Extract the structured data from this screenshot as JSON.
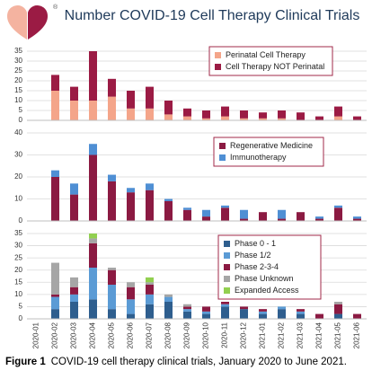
{
  "header": {
    "title": "Number COVID-19 Cell Therapy Clinical Trials",
    "mark": "®"
  },
  "caption": {
    "label": "Figure 1",
    "text": "COVID-19 cell therapy clinical trials, January 2020 to June 2021."
  },
  "chart_data": [
    {
      "type": "bar",
      "stacked": true,
      "grid": true,
      "legend": "top-right",
      "ylim": [
        0,
        35
      ],
      "yticks": [
        0,
        5,
        10,
        15,
        20,
        25,
        30,
        35
      ],
      "series": [
        {
          "name": "Perinatal Cell Therapy",
          "color": "#f4a58a",
          "values": [
            0,
            15,
            10,
            10,
            12,
            6,
            6,
            3,
            2,
            1,
            2,
            1,
            1,
            1,
            0,
            0,
            2,
            0
          ]
        },
        {
          "name": "Cell Therapy NOT Perinatal",
          "color": "#9b1b44",
          "values": [
            0,
            8,
            7,
            25,
            9,
            9,
            11,
            7,
            4,
            4,
            5,
            4,
            3,
            4,
            4,
            2,
            5,
            2
          ]
        }
      ]
    },
    {
      "type": "bar",
      "stacked": true,
      "grid": true,
      "legend": "top-right",
      "ylim": [
        0,
        40
      ],
      "yticks": [
        0,
        10,
        20,
        30,
        40
      ],
      "series": [
        {
          "name": "Regenerative Medicine",
          "color": "#8b1a42",
          "values": [
            0,
            20,
            12,
            30,
            18,
            13,
            14,
            9,
            5,
            2,
            6,
            1,
            4,
            1,
            4,
            1,
            6,
            1
          ]
        },
        {
          "name": "Immunotherapy",
          "color": "#4f8fd4",
          "values": [
            0,
            3,
            5,
            5,
            3,
            2,
            3,
            1,
            1,
            3,
            1,
            4,
            0,
            4,
            0,
            1,
            1,
            1
          ]
        }
      ]
    },
    {
      "type": "bar",
      "stacked": true,
      "grid": true,
      "legend": "top-right",
      "categories": [
        "2020-01",
        "2020-02",
        "2020-03",
        "2020-04",
        "2020-05",
        "2020-06",
        "2020-07",
        "2020-08",
        "2020-09",
        "2020-10",
        "2020-11",
        "2020-12",
        "2021-01",
        "2021-02",
        "2021-03",
        "2021-04",
        "2021-05",
        "2021-06"
      ],
      "ylim": [
        0,
        35
      ],
      "yticks": [
        0,
        5,
        10,
        15,
        20,
        25,
        30,
        35
      ],
      "series": [
        {
          "name": "Phase 0 - 1",
          "color": "#2e5e8e",
          "values": [
            0,
            4,
            7,
            8,
            4,
            2,
            6,
            7,
            3,
            2,
            5,
            4,
            2,
            4,
            2,
            0,
            2,
            0
          ]
        },
        {
          "name": "Phase 1/2",
          "color": "#5b9bd5",
          "values": [
            0,
            5,
            3,
            13,
            10,
            6,
            4,
            2,
            1,
            1,
            1,
            0,
            1,
            1,
            1,
            0,
            0,
            0
          ]
        },
        {
          "name": "Phase 2-3-4",
          "color": "#8b1a42",
          "values": [
            0,
            1,
            3,
            10,
            6,
            5,
            4,
            0,
            1,
            2,
            1,
            1,
            1,
            0,
            1,
            2,
            4,
            2
          ]
        },
        {
          "name": "Phase Unknown",
          "color": "#a6a6a6",
          "values": [
            0,
            13,
            4,
            2,
            1,
            2,
            1,
            1,
            1,
            0,
            0,
            0,
            0,
            0,
            0,
            0,
            1,
            0
          ]
        },
        {
          "name": "Expanded Access",
          "color": "#92d050",
          "values": [
            0,
            0,
            0,
            2,
            0,
            0,
            2,
            0,
            0,
            0,
            0,
            0,
            0,
            0,
            0,
            0,
            0,
            0
          ]
        }
      ]
    }
  ]
}
